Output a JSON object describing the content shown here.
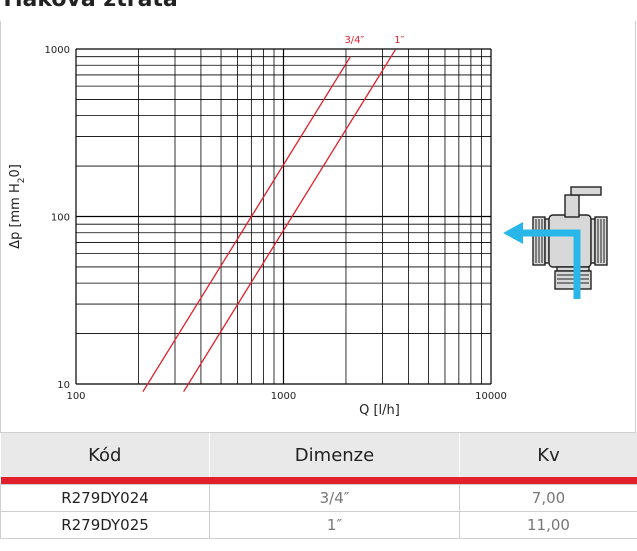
{
  "heading": "Tlaková ztráta",
  "chart_data": {
    "type": "line",
    "x_scale": "log",
    "y_scale": "log",
    "xlim": [
      100,
      10000
    ],
    "ylim": [
      10,
      1000
    ],
    "xlabel": "Q [l/h]",
    "ylabel_parts": [
      "Δp [mm H",
      "2",
      "0]"
    ],
    "x_ticks": [
      "100",
      "1000",
      "10000"
    ],
    "y_ticks": [
      "10",
      "100",
      "1000"
    ],
    "grid": true,
    "series": [
      {
        "name": "3/4″",
        "kv": 7.0,
        "x": [
          210,
          2100
        ],
        "y": [
          9.0,
          900
        ],
        "color": "#e2202c"
      },
      {
        "name": "1″",
        "kv": 11.0,
        "x": [
          330,
          3460
        ],
        "y": [
          9.0,
          990
        ],
        "color": "#e2202c"
      }
    ]
  },
  "table": {
    "headers": [
      "Kód",
      "Dimenze",
      "Kv"
    ],
    "rows": [
      [
        "R279DY024",
        "3/4″",
        "7,00"
      ],
      [
        "R279DY025",
        "1″",
        "11,00"
      ]
    ]
  },
  "colors": {
    "accent": "#e2202c",
    "arrow": "#29b6e8",
    "grid": "#000000"
  },
  "icons": {
    "valve": "three-way-ball-valve-icon",
    "flow": "flow-arrow-icon"
  }
}
